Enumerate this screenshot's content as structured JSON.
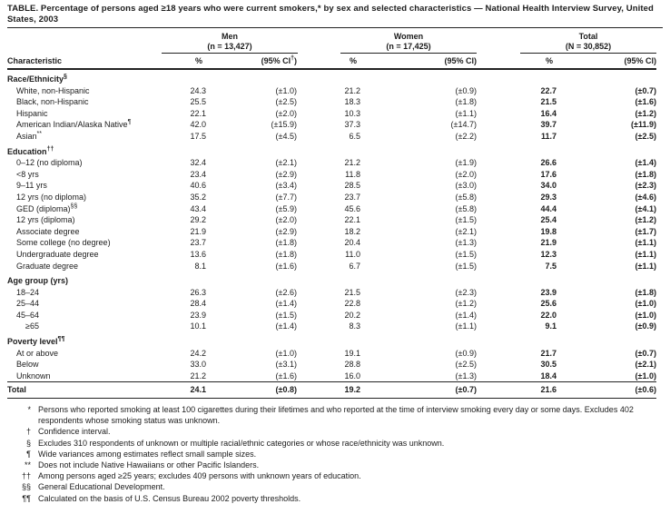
{
  "title": "TABLE. Percentage of persons aged ≥18 years who were current smokers,* by sex and selected characteristics — National Health Interview Survey, United States, 2003",
  "header": {
    "characteristic": "Characteristic",
    "groups": [
      {
        "name": "Men",
        "n": "(n = 13,427)",
        "pct": "%",
        "ci_pre": "(95% CI",
        "ci_sup": "†",
        "ci_post": ")"
      },
      {
        "name": "Women",
        "n": "(n = 17,425)",
        "pct": "%",
        "ci_pre": "(95% CI)",
        "ci_sup": "",
        "ci_post": ""
      },
      {
        "name": "Total",
        "n": "(N = 30,852)",
        "pct": "%",
        "ci_pre": "(95% CI)",
        "ci_sup": "",
        "ci_post": ""
      }
    ]
  },
  "table": {
    "rows": [
      {
        "type": "section",
        "label": "Race/Ethnicity",
        "sup": "§"
      },
      {
        "type": "data",
        "label": "White, non-Hispanic",
        "men_pct": "24.3",
        "men_ci": "(±1.0)",
        "women_pct": "21.2",
        "women_ci": "(±0.9)",
        "total_pct": "22.7",
        "total_ci": "(±0.7)"
      },
      {
        "type": "data",
        "label": "Black, non-Hispanic",
        "men_pct": "25.5",
        "men_ci": "(±2.5)",
        "women_pct": "18.3",
        "women_ci": "(±1.8)",
        "total_pct": "21.5",
        "total_ci": "(±1.6)"
      },
      {
        "type": "data",
        "label": "Hispanic",
        "men_pct": "22.1",
        "men_ci": "(±2.0)",
        "women_pct": "10.3",
        "women_ci": "(±1.1)",
        "total_pct": "16.4",
        "total_ci": "(±1.2)"
      },
      {
        "type": "data",
        "label": "American Indian/Alaska Native",
        "sup": "¶",
        "men_pct": "42.0",
        "men_ci": "(±15.9)",
        "women_pct": "37.3",
        "women_ci": "(±14.7)",
        "total_pct": "39.7",
        "total_ci": "(±11.9)"
      },
      {
        "type": "data",
        "label": "Asian",
        "sup": "**",
        "men_pct": "17.5",
        "men_ci": "(±4.5)",
        "women_pct": "6.5",
        "women_ci": "(±2.2)",
        "total_pct": "11.7",
        "total_ci": "(±2.5)"
      },
      {
        "type": "section",
        "label": "Education",
        "sup": "††"
      },
      {
        "type": "data",
        "label": "0–12 (no diploma)",
        "men_pct": "32.4",
        "men_ci": "(±2.1)",
        "women_pct": "21.2",
        "women_ci": "(±1.9)",
        "total_pct": "26.6",
        "total_ci": "(±1.4)"
      },
      {
        "type": "data",
        "label": "<8 yrs",
        "men_pct": "23.4",
        "men_ci": "(±2.9)",
        "women_pct": "11.8",
        "women_ci": "(±2.0)",
        "total_pct": "17.6",
        "total_ci": "(±1.8)"
      },
      {
        "type": "data",
        "label": "9–11 yrs",
        "men_pct": "40.6",
        "men_ci": "(±3.4)",
        "women_pct": "28.5",
        "women_ci": "(±3.0)",
        "total_pct": "34.0",
        "total_ci": "(±2.3)"
      },
      {
        "type": "data",
        "label": "12 yrs (no diploma)",
        "men_pct": "35.2",
        "men_ci": "(±7.7)",
        "women_pct": "23.7",
        "women_ci": "(±5.8)",
        "total_pct": "29.3",
        "total_ci": "(±4.6)"
      },
      {
        "type": "data",
        "label": "GED (diploma)",
        "sup": "§§",
        "men_pct": "43.4",
        "men_ci": "(±5.9)",
        "women_pct": "45.6",
        "women_ci": "(±5.8)",
        "total_pct": "44.4",
        "total_ci": "(±4.1)"
      },
      {
        "type": "data",
        "label": "12 yrs (diploma)",
        "men_pct": "29.2",
        "men_ci": "(±2.0)",
        "women_pct": "22.1",
        "women_ci": "(±1.5)",
        "total_pct": "25.4",
        "total_ci": "(±1.2)"
      },
      {
        "type": "data",
        "label": "Associate degree",
        "men_pct": "21.9",
        "men_ci": "(±2.9)",
        "women_pct": "18.2",
        "women_ci": "(±2.1)",
        "total_pct": "19.8",
        "total_ci": "(±1.7)"
      },
      {
        "type": "data",
        "label": "Some college (no degree)",
        "men_pct": "23.7",
        "men_ci": "(±1.8)",
        "women_pct": "20.4",
        "women_ci": "(±1.3)",
        "total_pct": "21.9",
        "total_ci": "(±1.1)"
      },
      {
        "type": "data",
        "label": "Undergraduate degree",
        "men_pct": "13.6",
        "men_ci": "(±1.8)",
        "women_pct": "11.0",
        "women_ci": "(±1.5)",
        "total_pct": "12.3",
        "total_ci": "(±1.1)"
      },
      {
        "type": "data",
        "label": "Graduate degree",
        "men_pct": "8.1",
        "men_ci": "(±1.6)",
        "women_pct": "6.7",
        "women_ci": "(±1.5)",
        "total_pct": "7.5",
        "total_ci": "(±1.1)"
      },
      {
        "type": "section",
        "label": "Age group (yrs)",
        "sup": ""
      },
      {
        "type": "data",
        "label": "18–24",
        "men_pct": "26.3",
        "men_ci": "(±2.6)",
        "women_pct": "21.5",
        "women_ci": "(±2.3)",
        "total_pct": "23.9",
        "total_ci": "(±1.8)"
      },
      {
        "type": "data",
        "label": "25–44",
        "men_pct": "28.4",
        "men_ci": "(±1.4)",
        "women_pct": "22.8",
        "women_ci": "(±1.2)",
        "total_pct": "25.6",
        "total_ci": "(±1.0)"
      },
      {
        "type": "data",
        "label": "45–64",
        "men_pct": "23.9",
        "men_ci": "(±1.5)",
        "women_pct": "20.2",
        "women_ci": "(±1.4)",
        "total_pct": "22.0",
        "total_ci": "(±1.0)"
      },
      {
        "type": "data",
        "indent": 2,
        "label": "≥65",
        "men_pct": "10.1",
        "men_ci": "(±1.4)",
        "women_pct": "8.3",
        "women_ci": "(±1.1)",
        "total_pct": "9.1",
        "total_ci": "(±0.9)"
      },
      {
        "type": "section",
        "label": "Poverty level",
        "sup": "¶¶"
      },
      {
        "type": "data",
        "label": "At or above",
        "men_pct": "24.2",
        "men_ci": "(±1.0)",
        "women_pct": "19.1",
        "women_ci": "(±0.9)",
        "total_pct": "21.7",
        "total_ci": "(±0.7)"
      },
      {
        "type": "data",
        "label": "Below",
        "men_pct": "33.0",
        "men_ci": "(±3.1)",
        "women_pct": "28.8",
        "women_ci": "(±2.5)",
        "total_pct": "30.5",
        "total_ci": "(±2.1)"
      },
      {
        "type": "data",
        "label": "Unknown",
        "men_pct": "21.2",
        "men_ci": "(±1.6)",
        "women_pct": "16.0",
        "women_ci": "(±1.3)",
        "total_pct": "18.4",
        "total_ci": "(±1.0)"
      },
      {
        "type": "total",
        "label": "Total",
        "men_pct": "24.1",
        "men_ci": "(±0.8)",
        "women_pct": "19.2",
        "women_ci": "(±0.7)",
        "total_pct": "21.6",
        "total_ci": "(±0.6)"
      }
    ]
  },
  "footnotes": [
    {
      "symbol": "*",
      "text": "Persons who reported smoking at least 100 cigarettes during their lifetimes and who reported at the time of interview smoking every day or some days. Excludes 402 respondents whose smoking status was unknown."
    },
    {
      "symbol": "†",
      "text": "Confidence interval."
    },
    {
      "symbol": "§",
      "text": "Excludes 310 respondents of unknown or multiple racial/ethnic categories or whose race/ethnicity was unknown."
    },
    {
      "symbol": "¶",
      "text": "Wide variances among estimates reflect small sample sizes."
    },
    {
      "symbol": "**",
      "text": "Does not include Native Hawaiians or other Pacific Islanders."
    },
    {
      "symbol": "††",
      "text": "Among persons aged ≥25 years; excludes 409 persons with unknown years of education."
    },
    {
      "symbol": "§§",
      "text": "General Educational Development."
    },
    {
      "symbol": "¶¶",
      "text": "Calculated on the basis of U.S. Census Bureau 2002 poverty thresholds."
    }
  ]
}
